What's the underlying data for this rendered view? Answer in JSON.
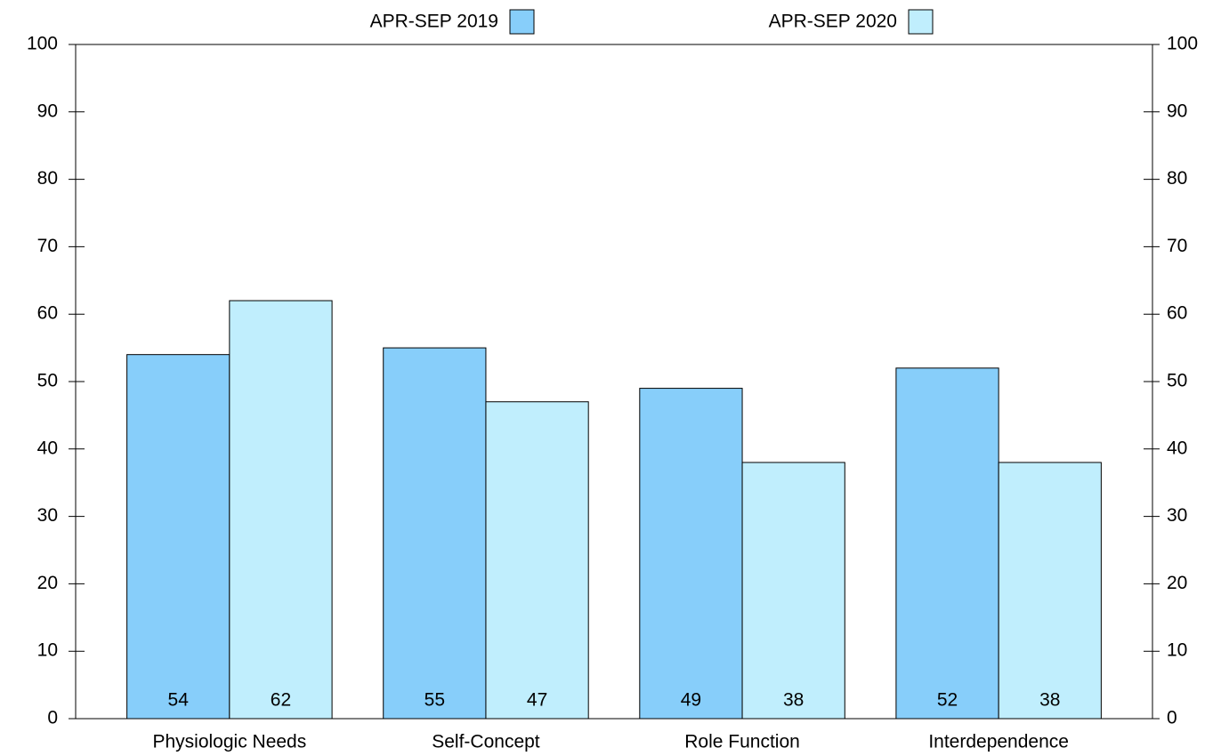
{
  "chart_data": {
    "type": "bar",
    "categories": [
      "Physiologic Needs",
      "Self-Concept",
      "Role Function",
      "Interdependence"
    ],
    "series": [
      {
        "name": "APR-SEP 2019",
        "color": "#87cefa",
        "values": [
          54,
          55,
          49,
          52
        ]
      },
      {
        "name": "APR-SEP 2020",
        "color": "#c0eefd",
        "values": [
          62,
          47,
          38,
          38
        ]
      }
    ],
    "ylim": [
      0,
      100
    ],
    "yticks": [
      0,
      10,
      20,
      30,
      40,
      50,
      60,
      70,
      80,
      90,
      100
    ],
    "y2lim": [
      0,
      100
    ],
    "y2ticks": [
      0,
      10,
      20,
      30,
      40,
      50,
      60,
      70,
      80,
      90,
      100
    ],
    "legend": "top",
    "grid": false
  }
}
